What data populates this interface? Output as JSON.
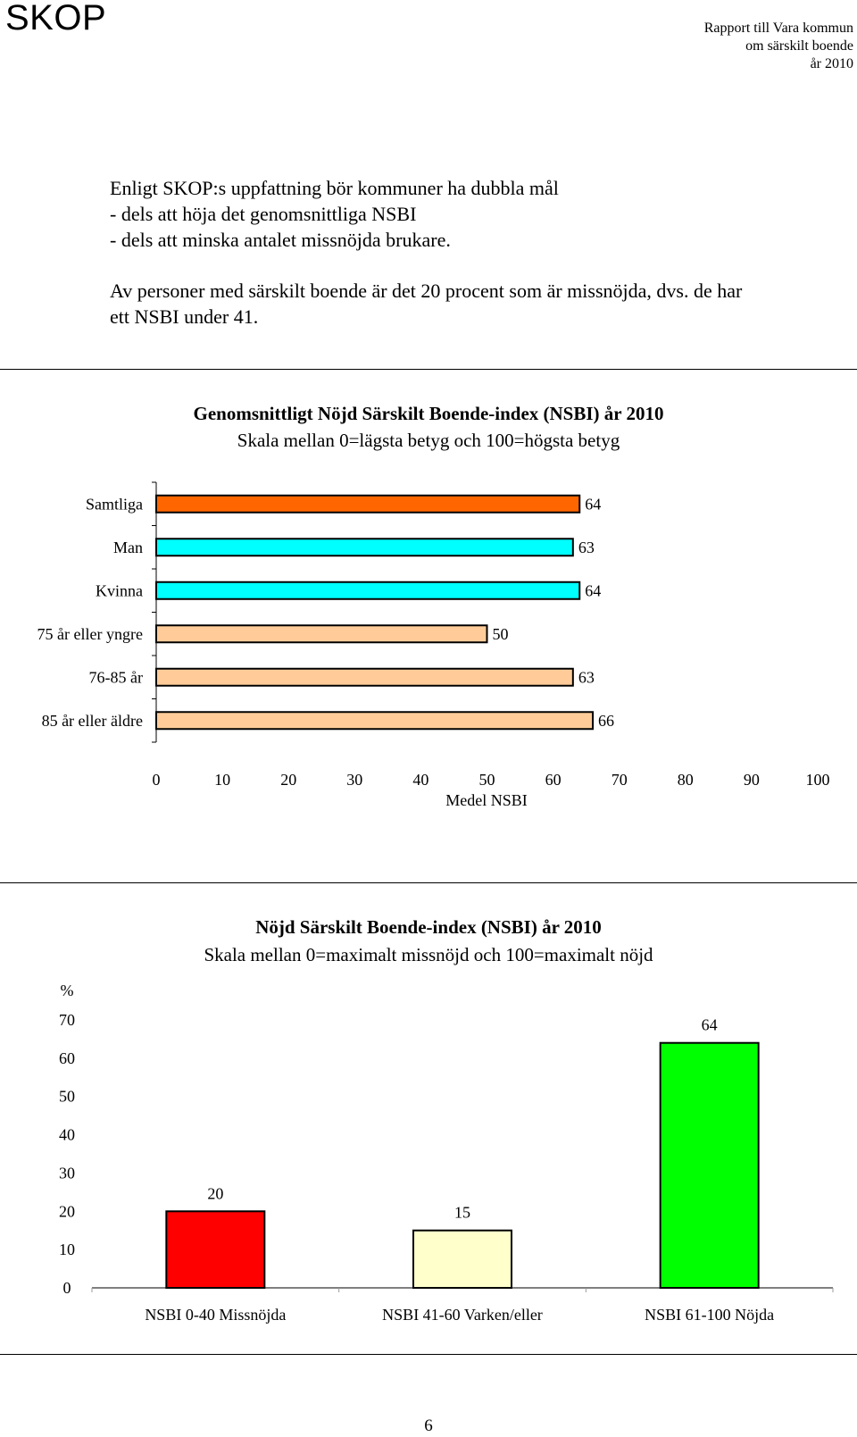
{
  "header": {
    "brand": "SKOP",
    "report_lines": [
      "Rapport till Vara kommun",
      "om särskilt boende",
      "år 2010"
    ]
  },
  "intro": {
    "paragraph1": [
      "Enligt SKOP:s uppfattning bör kommuner ha dubbla mål",
      "- dels att höja det genomsnittliga NSBI",
      "- dels att minska antalet missnöjda brukare."
    ],
    "paragraph2": [
      "Av personer med särskilt boende är det 20 procent som är missnöjda, dvs. de har",
      "ett NSBI under 41."
    ]
  },
  "chart_data": [
    {
      "type": "bar",
      "orientation": "horizontal",
      "title": "Genomsnittligt Nöjd Särskilt Boende-index (NSBI) år 2010",
      "subtitle": "Skala mellan 0=lägsta betyg och 100=högsta betyg",
      "xlabel": "Medel NSBI",
      "ylabel": "",
      "xlim": [
        0,
        100
      ],
      "xticks": [
        0,
        10,
        20,
        30,
        40,
        50,
        60,
        70,
        80,
        90,
        100
      ],
      "grid": false,
      "categories": [
        "Samtliga",
        "Man",
        "Kvinna",
        "75 år eller yngre",
        "76-85 år",
        "85 år eller äldre"
      ],
      "values": [
        64,
        63,
        64,
        50,
        63,
        66
      ],
      "colors": [
        "#FF6600",
        "#00FFFF",
        "#00FFFF",
        "#FFCC99",
        "#FFCC99",
        "#FFCC99"
      ]
    },
    {
      "type": "bar",
      "orientation": "vertical",
      "title": "Nöjd Särskilt Boende-index (NSBI) år 2010",
      "subtitle": "Skala mellan 0=maximalt missnöjd och 100=maximalt nöjd",
      "xlabel": "",
      "ylabel": "%",
      "ylim": [
        0,
        70
      ],
      "yticks": [
        0,
        10,
        20,
        30,
        40,
        50,
        60,
        70
      ],
      "grid": false,
      "categories": [
        "NSBI 0-40 Missnöjda",
        "NSBI 41-60 Varken/eller",
        "NSBI 61-100 Nöjda"
      ],
      "values": [
        20,
        15,
        64
      ],
      "colors": [
        "#FF0000",
        "#FFFFCC",
        "#00FF00"
      ]
    }
  ],
  "footer": {
    "page_number": "6"
  }
}
